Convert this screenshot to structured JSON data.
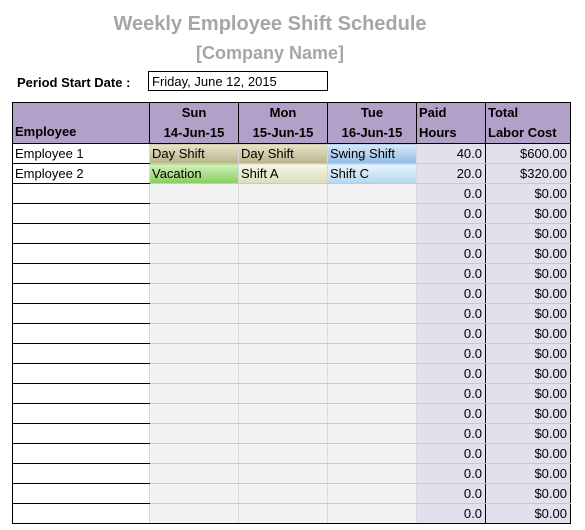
{
  "header": {
    "title": "Weekly Employee Shift Schedule",
    "company": "[Company Name]",
    "period_label": "Period Start Date :",
    "period_value": "Friday, June 12, 2015"
  },
  "columns": {
    "employee": "Employee",
    "days": [
      {
        "name": "Sun",
        "date": "14-Jun-15"
      },
      {
        "name": "Mon",
        "date": "15-Jun-15"
      },
      {
        "name": "Tue",
        "date": "16-Jun-15"
      }
    ],
    "paid_l1": "Paid",
    "paid_l2": "Hours",
    "total_l1": "Total",
    "total_l2": "Labor Cost"
  },
  "rows": [
    {
      "employee": "Employee 1",
      "shifts": [
        "Day Shift",
        "Day Shift",
        "Swing Shift"
      ],
      "hours": "40.0",
      "cost": "$600.00"
    },
    {
      "employee": "Employee 2",
      "shifts": [
        "Vacation",
        "Shift A",
        "Shift C"
      ],
      "hours": "20.0",
      "cost": "$320.00"
    },
    {
      "employee": "",
      "shifts": [
        "",
        "",
        ""
      ],
      "hours": "0.0",
      "cost": "$0.00"
    },
    {
      "employee": "",
      "shifts": [
        "",
        "",
        ""
      ],
      "hours": "0.0",
      "cost": "$0.00"
    },
    {
      "employee": "",
      "shifts": [
        "",
        "",
        ""
      ],
      "hours": "0.0",
      "cost": "$0.00"
    },
    {
      "employee": "",
      "shifts": [
        "",
        "",
        ""
      ],
      "hours": "0.0",
      "cost": "$0.00"
    },
    {
      "employee": "",
      "shifts": [
        "",
        "",
        ""
      ],
      "hours": "0.0",
      "cost": "$0.00"
    },
    {
      "employee": "",
      "shifts": [
        "",
        "",
        ""
      ],
      "hours": "0.0",
      "cost": "$0.00"
    },
    {
      "employee": "",
      "shifts": [
        "",
        "",
        ""
      ],
      "hours": "0.0",
      "cost": "$0.00"
    },
    {
      "employee": "",
      "shifts": [
        "",
        "",
        ""
      ],
      "hours": "0.0",
      "cost": "$0.00"
    },
    {
      "employee": "",
      "shifts": [
        "",
        "",
        ""
      ],
      "hours": "0.0",
      "cost": "$0.00"
    },
    {
      "employee": "",
      "shifts": [
        "",
        "",
        ""
      ],
      "hours": "0.0",
      "cost": "$0.00"
    },
    {
      "employee": "",
      "shifts": [
        "",
        "",
        ""
      ],
      "hours": "0.0",
      "cost": "$0.00"
    },
    {
      "employee": "",
      "shifts": [
        "",
        "",
        ""
      ],
      "hours": "0.0",
      "cost": "$0.00"
    },
    {
      "employee": "",
      "shifts": [
        "",
        "",
        ""
      ],
      "hours": "0.0",
      "cost": "$0.00"
    },
    {
      "employee": "",
      "shifts": [
        "",
        "",
        ""
      ],
      "hours": "0.0",
      "cost": "$0.00"
    },
    {
      "employee": "",
      "shifts": [
        "",
        "",
        ""
      ],
      "hours": "0.0",
      "cost": "$0.00"
    },
    {
      "employee": "",
      "shifts": [
        "",
        "",
        ""
      ],
      "hours": "0.0",
      "cost": "$0.00"
    },
    {
      "employee": "",
      "shifts": [
        "",
        "",
        ""
      ],
      "hours": "0.0",
      "cost": "$0.00"
    }
  ],
  "colors": {
    "header_bg": "#b1a0c7",
    "totals_bg": "#e4dfec",
    "title": "#a6a6a6"
  }
}
